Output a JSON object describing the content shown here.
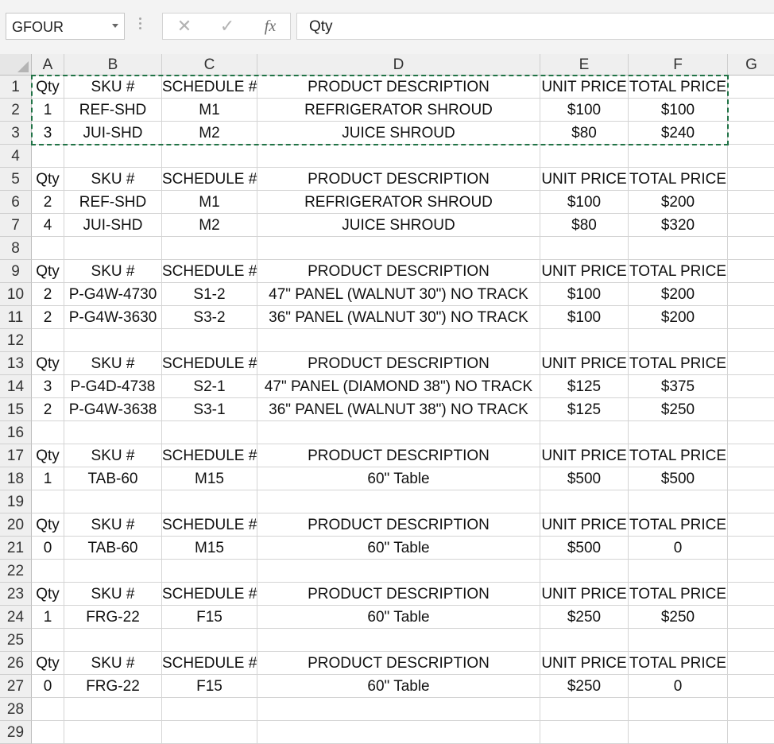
{
  "name_box": "GFOUR",
  "formula_bar": {
    "content": "Qty",
    "cancel_icon": "close-icon",
    "enter_icon": "check-icon",
    "function_label": "fx"
  },
  "columns": [
    "A",
    "B",
    "C",
    "D",
    "E",
    "F",
    "G"
  ],
  "copy_range": "A1:F3",
  "rows": [
    {
      "num": "1",
      "cells": [
        "Qty",
        "SKU #",
        "SCHEDULE #",
        "PRODUCT DESCRIPTION",
        "UNIT PRICE",
        "TOTAL PRICE",
        ""
      ]
    },
    {
      "num": "2",
      "cells": [
        "1",
        "REF-SHD",
        "M1",
        "REFRIGERATOR SHROUD",
        "$100",
        "$100",
        ""
      ]
    },
    {
      "num": "3",
      "cells": [
        "3",
        "JUI-SHD",
        "M2",
        "JUICE SHROUD",
        "$80",
        "$240",
        ""
      ]
    },
    {
      "num": "4",
      "cells": [
        "",
        "",
        "",
        "",
        "",
        "",
        ""
      ]
    },
    {
      "num": "5",
      "cells": [
        "Qty",
        "SKU #",
        "SCHEDULE #",
        "PRODUCT DESCRIPTION",
        "UNIT PRICE",
        "TOTAL PRICE",
        ""
      ]
    },
    {
      "num": "6",
      "cells": [
        "2",
        "REF-SHD",
        "M1",
        "REFRIGERATOR SHROUD",
        "$100",
        "$200",
        ""
      ]
    },
    {
      "num": "7",
      "cells": [
        "4",
        "JUI-SHD",
        "M2",
        "JUICE SHROUD",
        "$80",
        "$320",
        ""
      ]
    },
    {
      "num": "8",
      "cells": [
        "",
        "",
        "",
        "",
        "",
        "",
        ""
      ]
    },
    {
      "num": "9",
      "cells": [
        "Qty",
        "SKU #",
        "SCHEDULE #",
        "PRODUCT DESCRIPTION",
        "UNIT PRICE",
        "TOTAL PRICE",
        ""
      ]
    },
    {
      "num": "10",
      "cells": [
        "2",
        "P-G4W-4730",
        "S1-2",
        "47\" PANEL (WALNUT 30\") NO TRACK",
        "$100",
        "$200",
        ""
      ]
    },
    {
      "num": "11",
      "cells": [
        "2",
        "P-G4W-3630",
        "S3-2",
        "36\" PANEL (WALNUT 30\") NO TRACK",
        "$100",
        "$200",
        ""
      ]
    },
    {
      "num": "12",
      "cells": [
        "",
        "",
        "",
        "",
        "",
        "",
        ""
      ]
    },
    {
      "num": "13",
      "cells": [
        "Qty",
        "SKU #",
        "SCHEDULE #",
        "PRODUCT DESCRIPTION",
        "UNIT PRICE",
        "TOTAL PRICE",
        ""
      ]
    },
    {
      "num": "14",
      "cells": [
        "3",
        "P-G4D-4738",
        "S2-1",
        "47\" PANEL (DIAMOND 38\") NO TRACK",
        "$125",
        "$375",
        ""
      ]
    },
    {
      "num": "15",
      "cells": [
        "2",
        "P-G4W-3638",
        "S3-1",
        "36\" PANEL (WALNUT 38\") NO TRACK",
        "$125",
        "$250",
        ""
      ]
    },
    {
      "num": "16",
      "cells": [
        "",
        "",
        "",
        "",
        "",
        "",
        ""
      ]
    },
    {
      "num": "17",
      "cells": [
        "Qty",
        "SKU #",
        "SCHEDULE #",
        "PRODUCT DESCRIPTION",
        "UNIT PRICE",
        "TOTAL PRICE",
        ""
      ]
    },
    {
      "num": "18",
      "cells": [
        "1",
        "TAB-60",
        "M15",
        "60\" Table",
        "$500",
        "$500",
        ""
      ]
    },
    {
      "num": "19",
      "cells": [
        "",
        "",
        "",
        "",
        "",
        "",
        ""
      ]
    },
    {
      "num": "20",
      "cells": [
        "Qty",
        "SKU #",
        "SCHEDULE #",
        "PRODUCT DESCRIPTION",
        "UNIT PRICE",
        "TOTAL PRICE",
        ""
      ]
    },
    {
      "num": "21",
      "cells": [
        "0",
        "TAB-60",
        "M15",
        "60\" Table",
        "$500",
        "0",
        ""
      ]
    },
    {
      "num": "22",
      "cells": [
        "",
        "",
        "",
        "",
        "",
        "",
        ""
      ]
    },
    {
      "num": "23",
      "cells": [
        "Qty",
        "SKU #",
        "SCHEDULE #",
        "PRODUCT DESCRIPTION",
        "UNIT PRICE",
        "TOTAL PRICE",
        ""
      ]
    },
    {
      "num": "24",
      "cells": [
        "1",
        "FRG-22",
        "F15",
        "60\" Table",
        "$250",
        "$250",
        ""
      ]
    },
    {
      "num": "25",
      "cells": [
        "",
        "",
        "",
        "",
        "",
        "",
        ""
      ]
    },
    {
      "num": "26",
      "cells": [
        "Qty",
        "SKU #",
        "SCHEDULE #",
        "PRODUCT DESCRIPTION",
        "UNIT PRICE",
        "TOTAL PRICE",
        ""
      ]
    },
    {
      "num": "27",
      "cells": [
        "0",
        "FRG-22",
        "F15",
        "60\" Table",
        "$250",
        "0",
        ""
      ]
    },
    {
      "num": "28",
      "cells": [
        "",
        "",
        "",
        "",
        "",
        "",
        ""
      ]
    },
    {
      "num": "29",
      "cells": [
        "",
        "",
        "",
        "",
        "",
        "",
        ""
      ]
    }
  ]
}
